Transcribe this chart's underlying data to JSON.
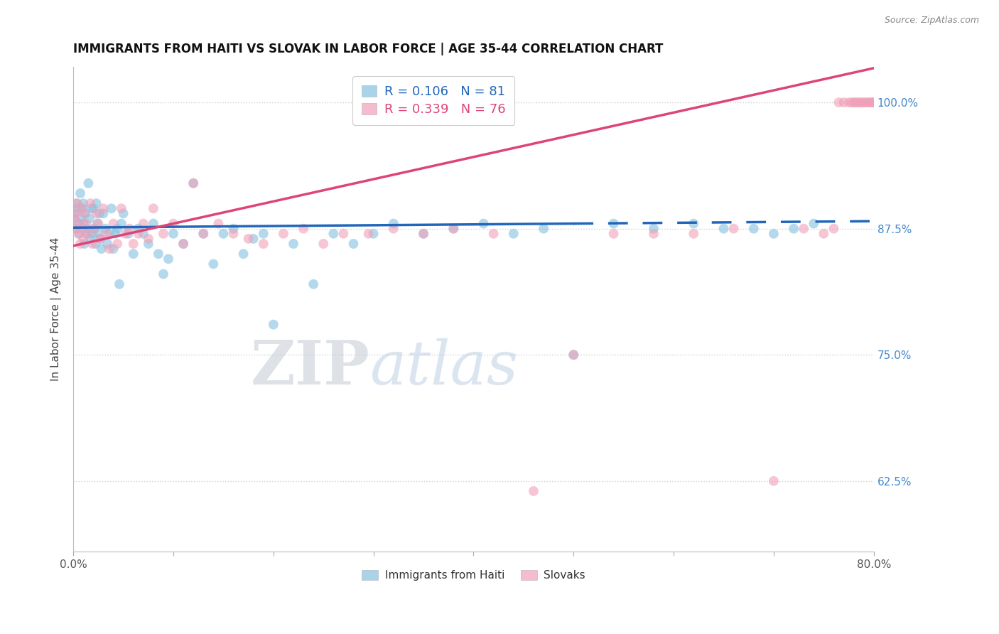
{
  "title": "IMMIGRANTS FROM HAITI VS SLOVAK IN LABOR FORCE | AGE 35-44 CORRELATION CHART",
  "source": "Source: ZipAtlas.com",
  "ylabel": "In Labor Force | Age 35-44",
  "xlim": [
    0.0,
    0.8
  ],
  "ylim": [
    0.555,
    1.035
  ],
  "xtick_positions": [
    0.0,
    0.1,
    0.2,
    0.3,
    0.4,
    0.5,
    0.6,
    0.7,
    0.8
  ],
  "xticklabels": [
    "0.0%",
    "",
    "",
    "",
    "",
    "",
    "",
    "",
    "80.0%"
  ],
  "ytick_positions": [
    0.625,
    0.75,
    0.875,
    1.0
  ],
  "yticklabels_right": [
    "62.5%",
    "75.0%",
    "87.5%",
    "100.0%"
  ],
  "haiti_color": "#85c1e0",
  "slovak_color": "#f0a0b8",
  "trend_haiti_color": "#2266bb",
  "trend_slovak_color": "#dd4477",
  "haiti_R": 0.106,
  "haiti_N": 81,
  "slovak_R": 0.339,
  "slovak_N": 76,
  "legend_haiti": "Immigrants from Haiti",
  "legend_slovak": "Slovaks",
  "background_color": "#ffffff",
  "grid_color": "#d0d0d0",
  "marker_size": 100,
  "marker_alpha": 0.6,
  "haiti_x": [
    0.001,
    0.002,
    0.003,
    0.003,
    0.004,
    0.005,
    0.006,
    0.007,
    0.008,
    0.009,
    0.01,
    0.01,
    0.011,
    0.012,
    0.013,
    0.014,
    0.015,
    0.016,
    0.017,
    0.018,
    0.019,
    0.02,
    0.021,
    0.022,
    0.023,
    0.024,
    0.025,
    0.026,
    0.027,
    0.028,
    0.03,
    0.032,
    0.034,
    0.036,
    0.038,
    0.04,
    0.042,
    0.044,
    0.046,
    0.048,
    0.05,
    0.055,
    0.06,
    0.065,
    0.07,
    0.075,
    0.08,
    0.085,
    0.09,
    0.095,
    0.1,
    0.11,
    0.12,
    0.13,
    0.14,
    0.15,
    0.16,
    0.17,
    0.18,
    0.19,
    0.2,
    0.22,
    0.24,
    0.26,
    0.28,
    0.3,
    0.32,
    0.35,
    0.38,
    0.41,
    0.44,
    0.47,
    0.5,
    0.54,
    0.58,
    0.62,
    0.65,
    0.68,
    0.7,
    0.72,
    0.74
  ],
  "haiti_y": [
    0.885,
    0.89,
    0.9,
    0.875,
    0.895,
    0.88,
    0.87,
    0.91,
    0.885,
    0.895,
    0.88,
    0.9,
    0.86,
    0.89,
    0.87,
    0.875,
    0.92,
    0.885,
    0.865,
    0.895,
    0.87,
    0.895,
    0.875,
    0.86,
    0.9,
    0.88,
    0.87,
    0.89,
    0.865,
    0.855,
    0.89,
    0.875,
    0.86,
    0.87,
    0.895,
    0.855,
    0.87,
    0.875,
    0.82,
    0.88,
    0.89,
    0.87,
    0.85,
    0.875,
    0.87,
    0.86,
    0.88,
    0.85,
    0.83,
    0.845,
    0.87,
    0.86,
    0.92,
    0.87,
    0.84,
    0.87,
    0.875,
    0.85,
    0.865,
    0.87,
    0.78,
    0.86,
    0.82,
    0.87,
    0.86,
    0.87,
    0.88,
    0.87,
    0.875,
    0.88,
    0.87,
    0.875,
    0.75,
    0.88,
    0.875,
    0.88,
    0.875,
    0.875,
    0.87,
    0.875,
    0.88
  ],
  "slovak_x": [
    0.001,
    0.002,
    0.003,
    0.004,
    0.005,
    0.006,
    0.007,
    0.008,
    0.009,
    0.01,
    0.011,
    0.013,
    0.015,
    0.017,
    0.019,
    0.021,
    0.023,
    0.025,
    0.027,
    0.03,
    0.033,
    0.036,
    0.04,
    0.044,
    0.048,
    0.052,
    0.056,
    0.06,
    0.065,
    0.07,
    0.075,
    0.08,
    0.09,
    0.1,
    0.11,
    0.12,
    0.13,
    0.145,
    0.16,
    0.175,
    0.19,
    0.21,
    0.23,
    0.25,
    0.27,
    0.295,
    0.32,
    0.35,
    0.38,
    0.42,
    0.46,
    0.5,
    0.54,
    0.58,
    0.62,
    0.66,
    0.7,
    0.73,
    0.75,
    0.76,
    0.765,
    0.77,
    0.775,
    0.778,
    0.78,
    0.782,
    0.784,
    0.786,
    0.788,
    0.79,
    0.792,
    0.794,
    0.796,
    0.798,
    0.799,
    0.8
  ],
  "slovak_y": [
    0.885,
    0.89,
    0.875,
    0.9,
    0.87,
    0.88,
    0.86,
    0.895,
    0.875,
    0.865,
    0.89,
    0.88,
    0.87,
    0.9,
    0.86,
    0.875,
    0.89,
    0.88,
    0.865,
    0.895,
    0.87,
    0.855,
    0.88,
    0.86,
    0.895,
    0.87,
    0.875,
    0.86,
    0.87,
    0.88,
    0.865,
    0.895,
    0.87,
    0.88,
    0.86,
    0.92,
    0.87,
    0.88,
    0.87,
    0.865,
    0.86,
    0.87,
    0.875,
    0.86,
    0.87,
    0.87,
    0.875,
    0.87,
    0.875,
    0.87,
    0.615,
    0.75,
    0.87,
    0.87,
    0.87,
    0.875,
    0.625,
    0.875,
    0.87,
    0.875,
    1.0,
    1.0,
    1.0,
    1.0,
    1.0,
    1.0,
    1.0,
    1.0,
    1.0,
    1.0,
    1.0,
    1.0,
    1.0,
    1.0,
    1.0,
    1.0
  ],
  "haiti_trend_x_solid_end": 0.5,
  "haiti_trend_intercept": 0.876,
  "haiti_trend_slope": 0.008,
  "slovak_trend_intercept": 0.858,
  "slovak_trend_slope": 0.22
}
